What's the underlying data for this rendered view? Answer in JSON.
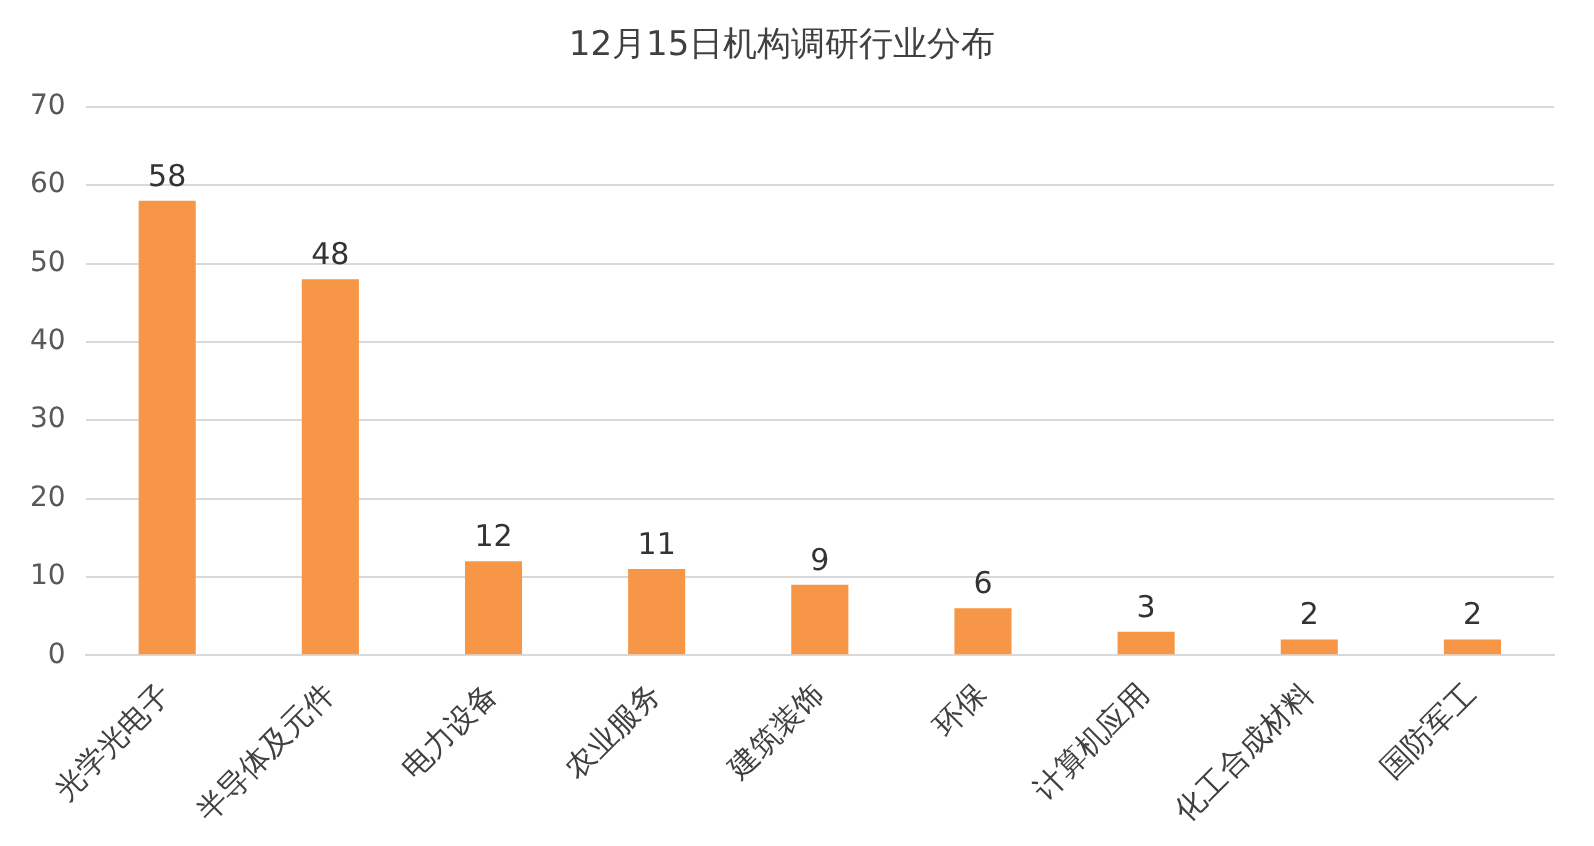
{
  "chart_data": {
    "type": "bar",
    "title": "12月15日机构调研行业分布",
    "categories": [
      "光学光电子",
      "半导体及元件",
      "电力设备",
      "农业服务",
      "建筑装饰",
      "环保",
      "计算机应用",
      "化工合成材料",
      "国防军工"
    ],
    "values": [
      58,
      48,
      12,
      11,
      9,
      6,
      3,
      2,
      2
    ],
    "color": "#f79646",
    "ylim": [
      0,
      70
    ],
    "yticks": [
      0,
      10,
      20,
      30,
      40,
      50,
      60,
      70
    ],
    "grid": "y",
    "data_labels": true,
    "legend": false
  }
}
